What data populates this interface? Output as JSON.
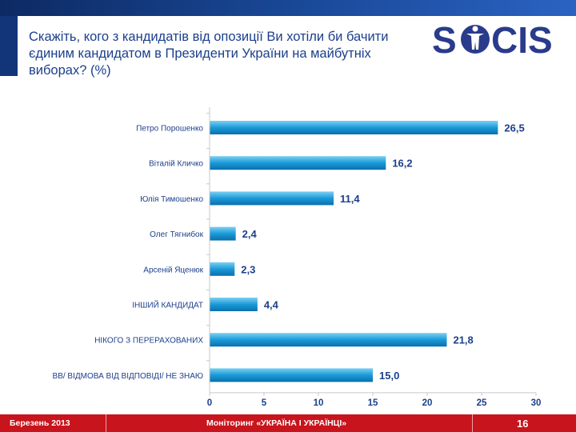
{
  "title": "Скажіть, кого з кандидатів від опозиції Ви хотіли би бачити єдиним кандидатом в Президенти України на майбутніх виборах? (%)",
  "logo_text": "SOCIS",
  "footer": {
    "date": "Березень 2013",
    "center": "Моніторинг «УКРАЇНА І УКРАЇНЦІ»",
    "page": "16"
  },
  "colors": {
    "bar": "#1a9ad8",
    "value_text": "#1c3f8c",
    "footer": "#c8141c",
    "header": "#12357a"
  },
  "chart_data": {
    "type": "bar",
    "orientation": "horizontal",
    "categories": [
      "Петро Порошенко",
      "Віталій Кличко",
      "Юлія Тимошенко",
      "Олег Тягнибок",
      "Арсеній Яценюк",
      "ІНШИЙ КАНДИДАТ",
      "НІКОГО З ПЕРЕРАХОВАНИХ",
      "ВВ/ ВІДМОВА ВІД ВІДПОВІДІ/ НЕ ЗНАЮ"
    ],
    "values": [
      26.5,
      16.2,
      11.4,
      2.4,
      2.3,
      4.4,
      21.8,
      15.0
    ],
    "labels": [
      "26,5",
      "16,2",
      "11,4",
      "2,4",
      "2,3",
      "4,4",
      "21,8",
      "15,0"
    ],
    "xlim": [
      0,
      30
    ],
    "xticks": [
      "0",
      "5",
      "10",
      "15",
      "20",
      "25",
      "30"
    ],
    "unit": "%"
  }
}
